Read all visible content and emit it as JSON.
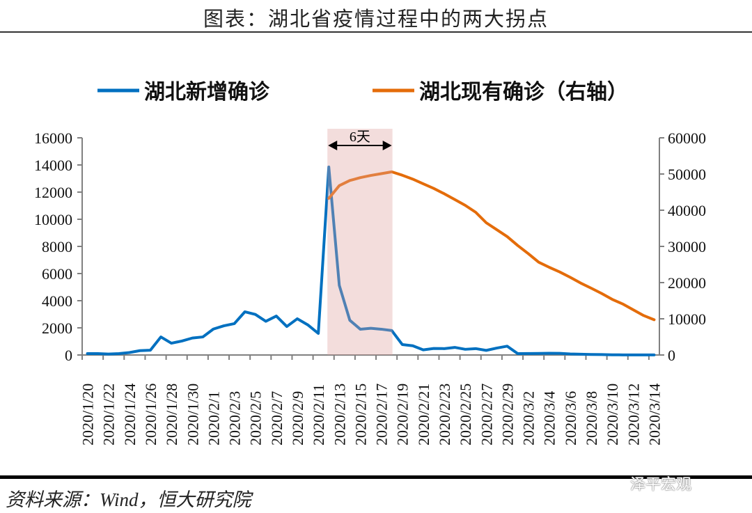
{
  "title": "图表：湖北省疫情过程中的两大拐点",
  "source": "资料来源：Wind，恒大研究院",
  "watermark": "泽平宏观",
  "chart_data": {
    "type": "line",
    "title": "",
    "annotation": "6天",
    "highlight_range": [
      "2020/2/12",
      "2020/2/18"
    ],
    "legend_position": "top",
    "grid": false,
    "colors": {
      "blue": "#0070c0",
      "orange": "#e46c0a",
      "highlight": "#f2dcdb"
    },
    "y_left": {
      "lim": [
        0,
        16000
      ],
      "ticks": [
        "0",
        "2000",
        "4000",
        "6000",
        "8000",
        "10000",
        "12000",
        "14000",
        "16000"
      ]
    },
    "y_right": {
      "lim": [
        0,
        60000
      ],
      "ticks": [
        "0",
        "10000",
        "20000",
        "30000",
        "40000",
        "50000",
        "60000"
      ]
    },
    "categories": [
      "2020/1/20",
      "2020/1/21",
      "2020/1/22",
      "2020/1/23",
      "2020/1/24",
      "2020/1/25",
      "2020/1/26",
      "2020/1/27",
      "2020/1/28",
      "2020/1/29",
      "2020/1/30",
      "2020/1/31",
      "2020/2/1",
      "2020/2/2",
      "2020/2/3",
      "2020/2/4",
      "2020/2/5",
      "2020/2/6",
      "2020/2/7",
      "2020/2/8",
      "2020/2/9",
      "2020/2/10",
      "2020/2/11",
      "2020/2/12",
      "2020/2/13",
      "2020/2/14",
      "2020/2/15",
      "2020/2/16",
      "2020/2/17",
      "2020/2/18",
      "2020/2/19",
      "2020/2/20",
      "2020/2/21",
      "2020/2/22",
      "2020/2/23",
      "2020/2/24",
      "2020/2/25",
      "2020/2/26",
      "2020/2/27",
      "2020/2/28",
      "2020/2/29",
      "2020/3/1",
      "2020/3/2",
      "2020/3/3",
      "2020/3/4",
      "2020/3/5",
      "2020/3/6",
      "2020/3/7",
      "2020/3/8",
      "2020/3/9",
      "2020/3/10",
      "2020/3/11",
      "2020/3/12",
      "2020/3/13",
      "2020/3/14"
    ],
    "series": [
      {
        "name": "湖北新增确诊",
        "axis": "left",
        "color": "#0070c0",
        "values": [
          100,
          100,
          70,
          100,
          180,
          320,
          350,
          1330,
          870,
          1030,
          1250,
          1330,
          1910,
          2150,
          2310,
          3180,
          2990,
          2480,
          2870,
          2100,
          2670,
          2220,
          1590,
          13850,
          5130,
          2560,
          1900,
          1970,
          1900,
          1800,
          770,
          680,
          380,
          480,
          470,
          560,
          420,
          470,
          340,
          510,
          650,
          100,
          110,
          115,
          130,
          120,
          80,
          60,
          40,
          35,
          15,
          8,
          5,
          4,
          4
        ]
      },
      {
        "name": "湖北现有确诊（右轴）",
        "axis": "right",
        "color": "#e46c0a",
        "values": [
          null,
          null,
          null,
          null,
          null,
          null,
          null,
          null,
          null,
          null,
          null,
          null,
          null,
          null,
          null,
          null,
          null,
          null,
          null,
          null,
          null,
          null,
          null,
          43270,
          46790,
          48200,
          49000,
          49600,
          50100,
          50600,
          49670,
          48590,
          47300,
          46020,
          44550,
          42950,
          41350,
          39420,
          36540,
          34620,
          32700,
          30250,
          28010,
          25640,
          24230,
          22950,
          21470,
          19870,
          18460,
          16990,
          15380,
          14100,
          12500,
          10900,
          9740
        ]
      }
    ]
  }
}
